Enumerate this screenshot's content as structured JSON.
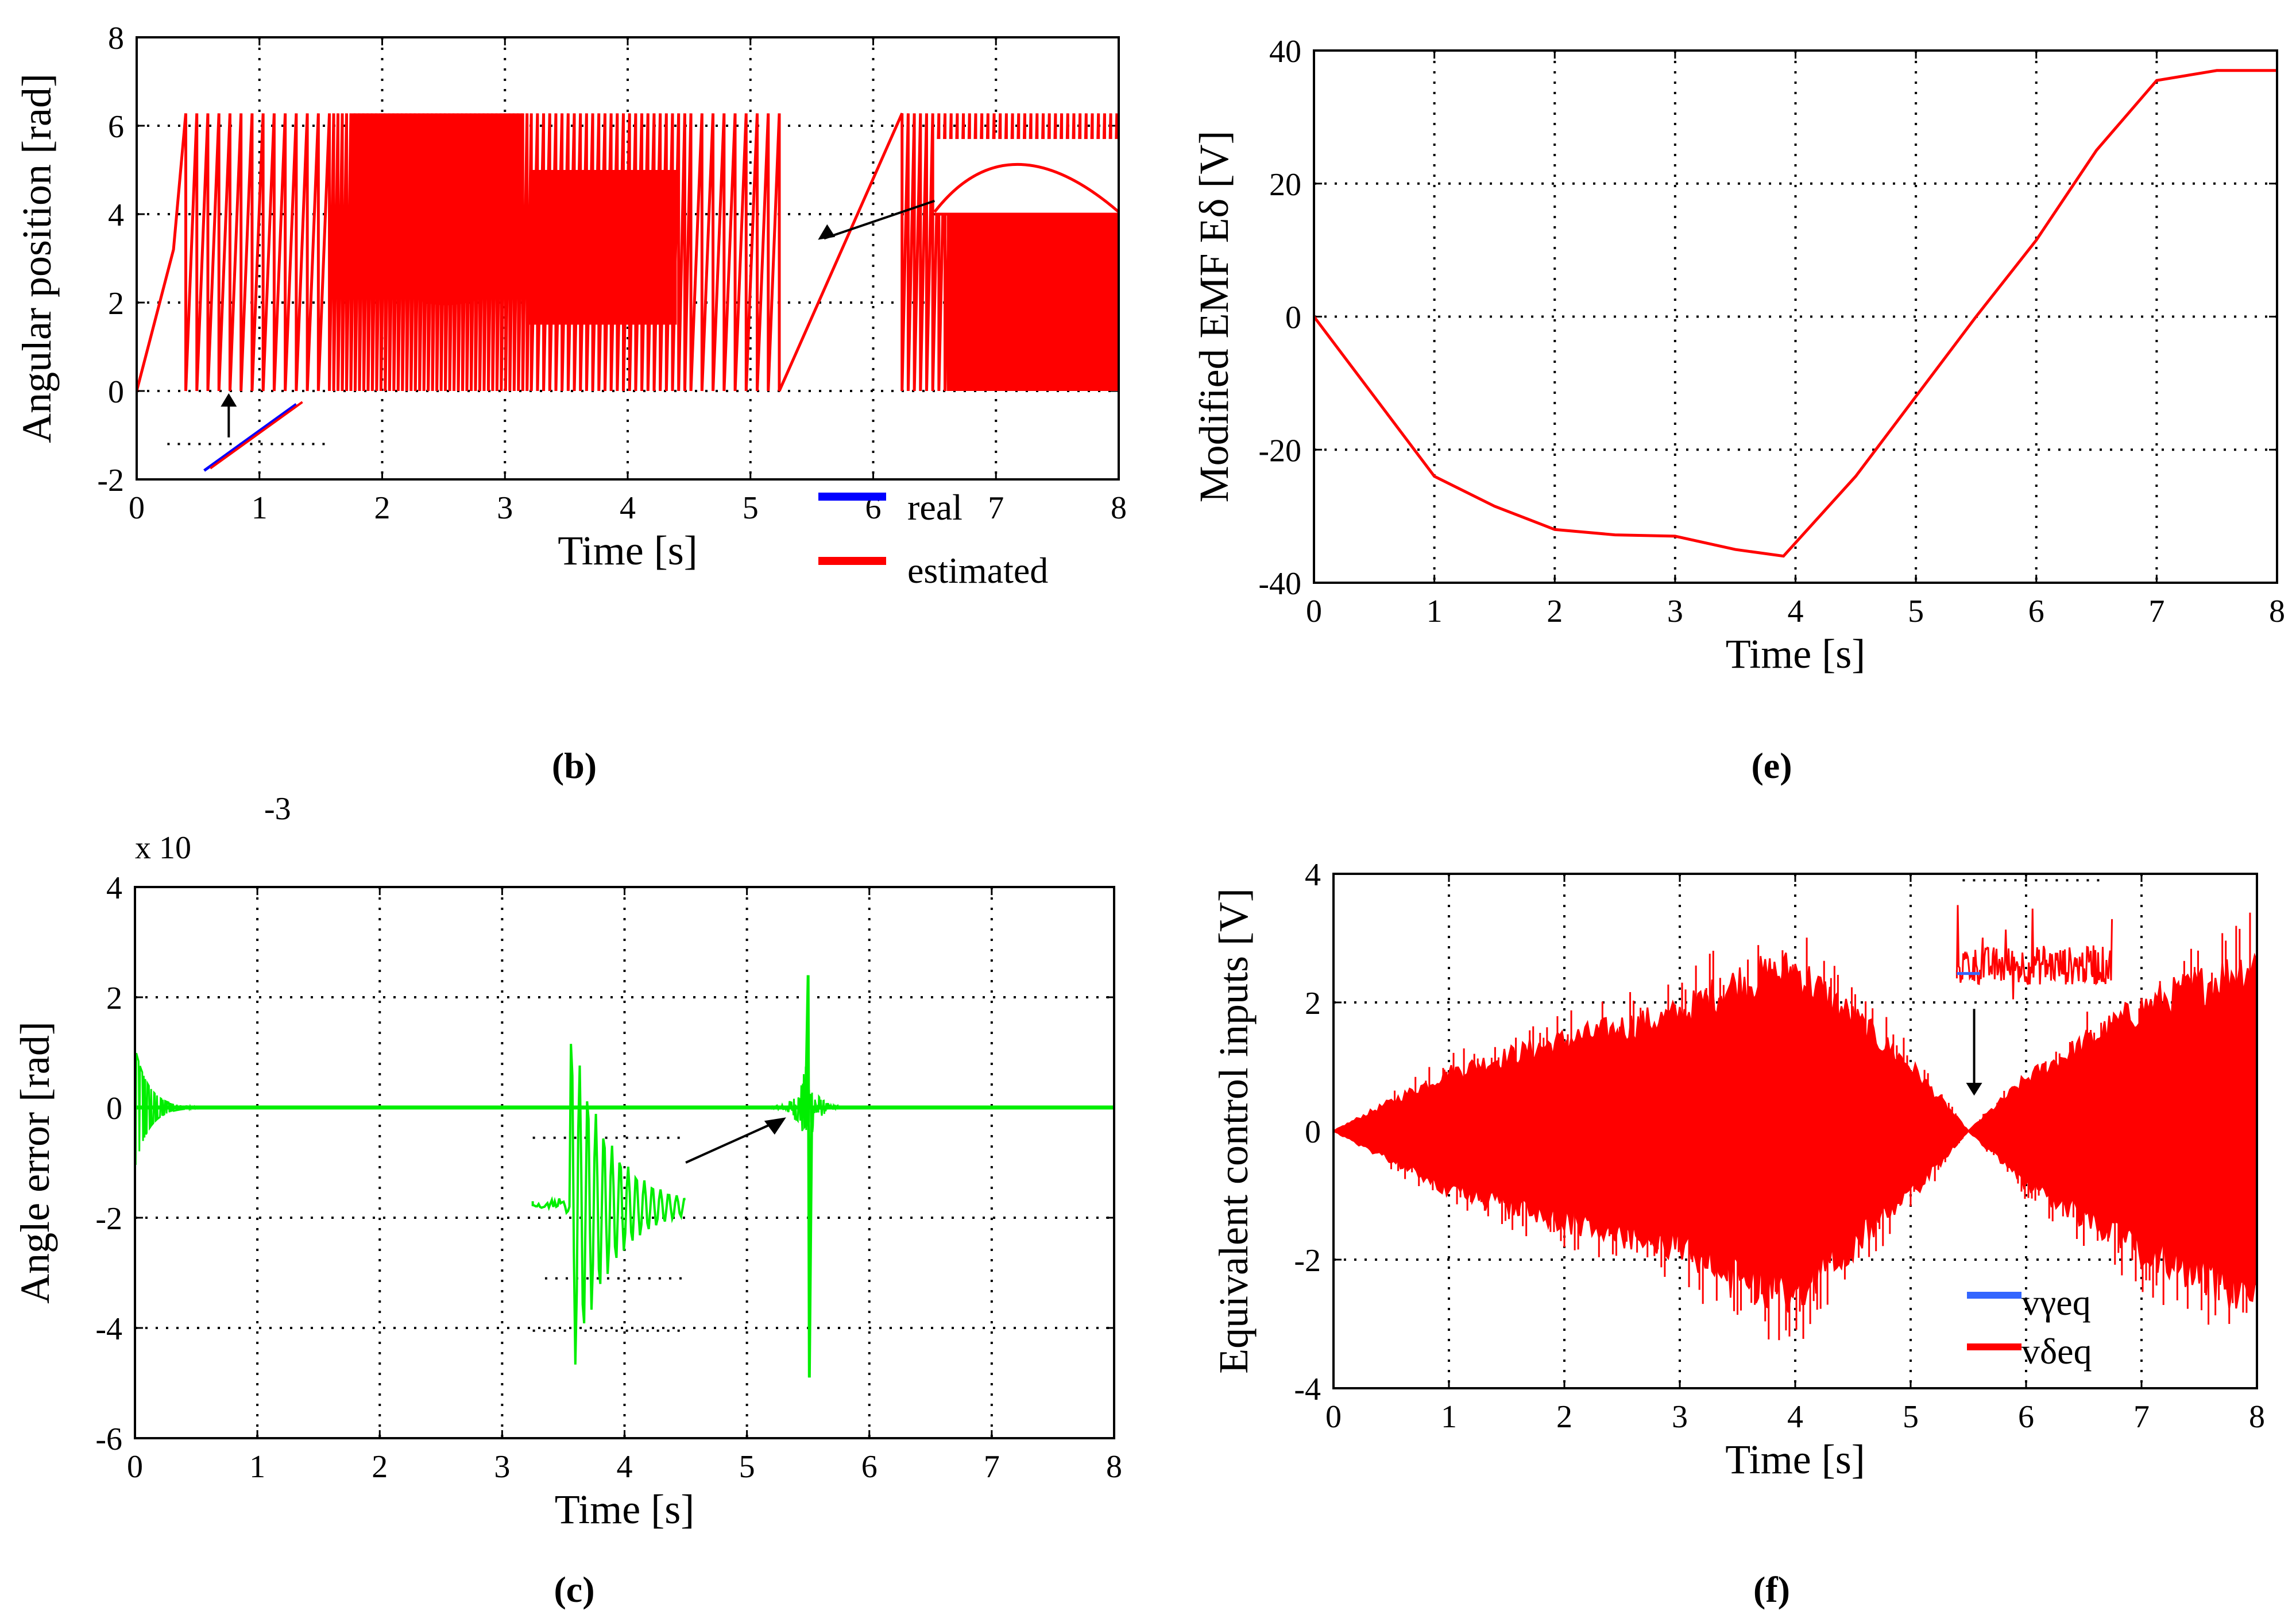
{
  "colors": {
    "real": "#0000ff",
    "estimated": "#ff0000",
    "error": "#00ee00",
    "vgamma": "#3366ff",
    "vdelta": "#ff0000"
  },
  "chart_data": [
    {
      "id": "b",
      "type": "line",
      "caption_label": "b",
      "xlabel": "Time [s]",
      "ylabel": "Angular position [rad]",
      "xlim": [
        0,
        8
      ],
      "ylim": [
        -2,
        8
      ],
      "xticks": [
        "0",
        "1",
        "2",
        "3",
        "4",
        "5",
        "6",
        "7",
        "8"
      ],
      "yticks": [
        "-2",
        "0",
        "2",
        "4",
        "6",
        "8"
      ],
      "legend": [
        {
          "name": "real",
          "color": "#0000ff"
        },
        {
          "name": "estimated",
          "color": "#ff0000"
        }
      ],
      "series": [
        {
          "name": "real",
          "x": [
            0,
            0.3,
            0.4
          ],
          "y": [
            0,
            3.2,
            6.28
          ]
        },
        {
          "name": "estimated",
          "x": [
            0,
            0.3,
            0.4
          ],
          "y": [
            0,
            3.2,
            6.28
          ]
        }
      ],
      "wrap_range": [
        0,
        6.28
      ],
      "zoom_arc_peak": 3.45,
      "zoom_arc_time": 5.45
    },
    {
      "id": "e",
      "type": "line",
      "caption_label": "e",
      "xlabel": "Time [s]",
      "ylabel": "Modified EMF Eδ [V]",
      "xlim": [
        0,
        8
      ],
      "ylim": [
        -40,
        40
      ],
      "xticks": [
        "0",
        "1",
        "2",
        "3",
        "4",
        "5",
        "6",
        "7",
        "8"
      ],
      "yticks": [
        "-40",
        "-20",
        "0",
        "20",
        "40"
      ],
      "series": [
        {
          "name": "Eδ",
          "x": [
            0,
            0.5,
            1.0,
            1.5,
            2.0,
            2.5,
            3.0,
            3.5,
            3.9,
            4.5,
            5.0,
            5.5,
            6.0,
            6.5,
            7.0,
            7.5,
            8.0
          ],
          "y": [
            0,
            -12,
            -24,
            -28.5,
            -32,
            -32.8,
            -33,
            -35,
            -36,
            -24,
            -12,
            0,
            11.5,
            25,
            35.5,
            37,
            37
          ]
        }
      ]
    },
    {
      "id": "c",
      "type": "line",
      "caption_label": "c",
      "xlabel": "Time [s]",
      "ylabel": "Angle error [rad]",
      "scale_note": "x 10",
      "scale_exp": "-3",
      "xlim": [
        0,
        8
      ],
      "ylim": [
        -6,
        4
      ],
      "xticks": [
        "0",
        "1",
        "2",
        "3",
        "4",
        "5",
        "6",
        "7",
        "8"
      ],
      "yticks": [
        "-6",
        "-4",
        "-2",
        "0",
        "2",
        "4"
      ],
      "series": [
        {
          "name": "error",
          "x": [
            0,
            0.05,
            0.5,
            5.3,
            5.47,
            5.5,
            5.53,
            6,
            8
          ],
          "y": [
            0,
            1.1,
            0,
            0,
            -0.5,
            2.4,
            -4.9,
            0,
            0
          ]
        }
      ]
    },
    {
      "id": "f",
      "type": "line",
      "caption_label": "f",
      "xlabel": "Time [s]",
      "ylabel": "Equivalent control inputs [V]",
      "xlim": [
        0,
        8
      ],
      "ylim": [
        -4,
        4
      ],
      "xticks": [
        "0",
        "1",
        "2",
        "3",
        "4",
        "5",
        "6",
        "7",
        "8"
      ],
      "yticks": [
        "-4",
        "-2",
        "0",
        "2",
        "4"
      ],
      "legend": [
        {
          "name": "vγeq",
          "color": "#3366ff"
        },
        {
          "name": "vδeq",
          "color": "#ff0000"
        }
      ],
      "envelope": {
        "x": [
          0,
          1,
          2,
          3,
          3.5,
          4,
          5,
          5.5,
          6,
          7,
          8
        ],
        "amp": [
          0,
          0.9,
          1.4,
          1.8,
          2.3,
          2.5,
          1.0,
          0,
          0.8,
          1.9,
          2.6
        ]
      }
    }
  ]
}
